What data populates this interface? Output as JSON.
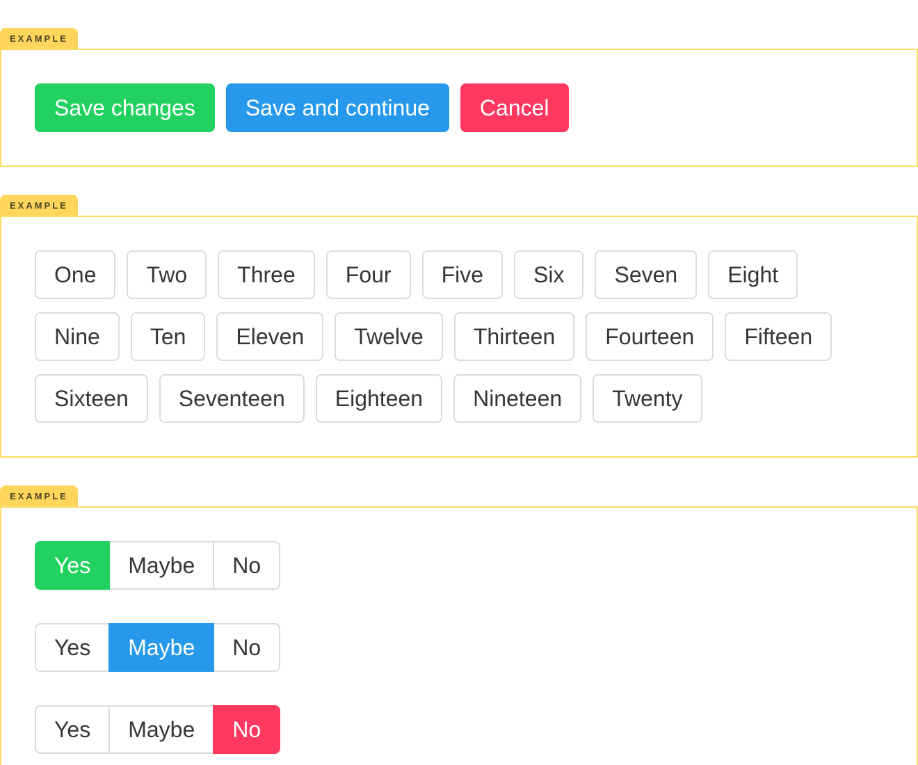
{
  "colors": {
    "success_green": "#23d160",
    "info_blue": "#2699ec",
    "danger_red": "#ff3860",
    "example_tab_yellow": "#ffd65b",
    "example_border_yellow": "#ffdc62",
    "outline_button_border": "#dbdbdb",
    "button_text_dark": "#363636"
  },
  "examples": [
    {
      "label": "EXAMPLE",
      "buttons": [
        {
          "label": "Save changes",
          "variant": "success"
        },
        {
          "label": "Save and continue",
          "variant": "info"
        },
        {
          "label": "Cancel",
          "variant": "danger"
        }
      ]
    },
    {
      "label": "EXAMPLE",
      "buttons": [
        "One",
        "Two",
        "Three",
        "Four",
        "Five",
        "Six",
        "Seven",
        "Eight",
        "Nine",
        "Ten",
        "Eleven",
        "Twelve",
        "Thirteen",
        "Fourteen",
        "Fifteen",
        "Sixteen",
        "Seventeen",
        "Eighteen",
        "Nineteen",
        "Twenty"
      ]
    },
    {
      "label": "EXAMPLE",
      "groups": [
        {
          "options": [
            "Yes",
            "Maybe",
            "No"
          ],
          "selected": "Yes",
          "selected_variant": "success"
        },
        {
          "options": [
            "Yes",
            "Maybe",
            "No"
          ],
          "selected": "Maybe",
          "selected_variant": "info"
        },
        {
          "options": [
            "Yes",
            "Maybe",
            "No"
          ],
          "selected": "No",
          "selected_variant": "danger"
        }
      ]
    }
  ]
}
